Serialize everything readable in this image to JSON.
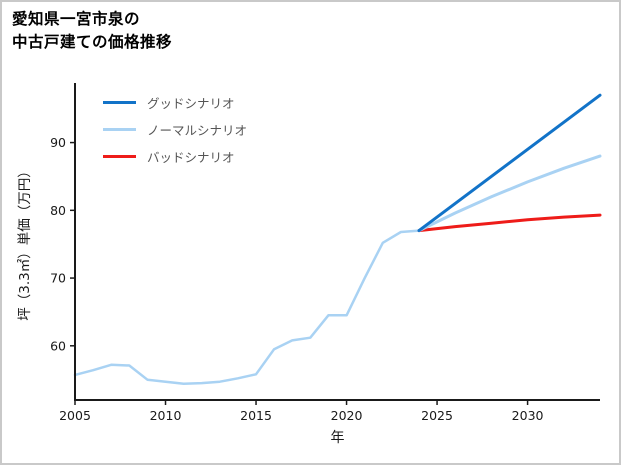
{
  "title": {
    "line1": "愛知県一宮市泉の",
    "line2": "中古戸建ての価格推移"
  },
  "chart_data": {
    "type": "line",
    "title": "愛知県一宮市泉の中古戸建ての価格推移",
    "xlabel": "年",
    "ylabel": "坪（3.3㎡）単価（万円）",
    "xlim": [
      2005,
      2034
    ],
    "ylim": [
      52,
      98.5
    ],
    "x_ticks": [
      2005,
      2010,
      2015,
      2020,
      2025,
      2030
    ],
    "y_ticks": [
      60,
      70,
      80,
      90
    ],
    "grid": false,
    "legend_position": "upper-left",
    "axis_color": "#1a1a1a",
    "tick_label_color": "#1a1a1a",
    "series": [
      {
        "name": "price-history",
        "color": "#a9d2f3",
        "width": 2.5,
        "x": [
          2005,
          2006,
          2007,
          2008,
          2009,
          2010,
          2011,
          2012,
          2013,
          2014,
          2015,
          2016,
          2017,
          2018,
          2019,
          2020,
          2021,
          2022,
          2023,
          2024
        ],
        "y": [
          55.7,
          56.4,
          57.2,
          57.1,
          55.0,
          54.7,
          54.4,
          54.5,
          54.7,
          55.2,
          55.8,
          59.5,
          60.8,
          61.2,
          64.5,
          64.5,
          70.0,
          75.2,
          76.8,
          77.0
        ]
      },
      {
        "name": "バッドシナリオ",
        "color": "#ee1c19",
        "width": 3,
        "x": [
          2024,
          2026,
          2028,
          2030,
          2032,
          2034
        ],
        "y": [
          77.0,
          77.6,
          78.1,
          78.6,
          79.0,
          79.3
        ]
      },
      {
        "name": "ノーマルシナリオ",
        "color": "#a9d2f3",
        "width": 3,
        "x": [
          2024,
          2026,
          2028,
          2030,
          2032,
          2034
        ],
        "y": [
          77.0,
          79.6,
          82.0,
          84.2,
          86.2,
          88.0
        ]
      },
      {
        "name": "グッドシナリオ",
        "color": "#1273c8",
        "width": 3,
        "x": [
          2024,
          2034
        ],
        "y": [
          77.0,
          97.0
        ]
      }
    ],
    "legend": [
      {
        "label": "グッドシナリオ",
        "color": "#1273c8"
      },
      {
        "label": "ノーマルシナリオ",
        "color": "#a9d2f3"
      },
      {
        "label": "バッドシナリオ",
        "color": "#ee1c19"
      }
    ]
  }
}
